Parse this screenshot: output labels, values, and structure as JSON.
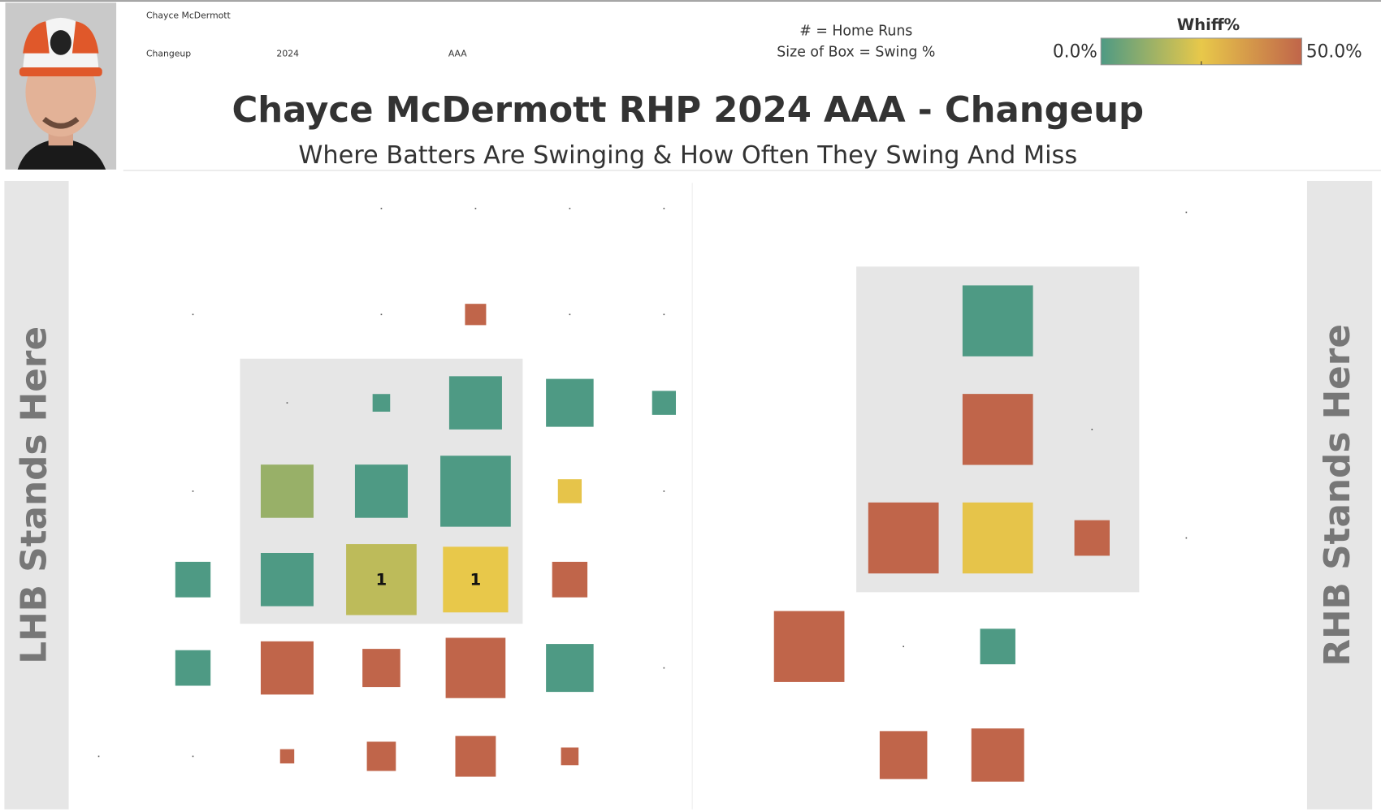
{
  "header": {
    "player": "Chayce McDermott",
    "pitch": "Changeup",
    "season": "2024",
    "level": "AAA",
    "title": "Chayce McDermott RHP 2024 AAA - Changeup",
    "subtitle": "Where Batters Are Swinging & How Often They Swing And Miss",
    "notes": [
      "# = Home Runs",
      "Size of Box = Swing %"
    ]
  },
  "color_scale": {
    "title": "Whiff%",
    "lim": [
      0,
      50
    ],
    "ticks": [
      {
        "value": 0,
        "label": "0.0%"
      },
      {
        "value": 50,
        "label": "50.0%"
      }
    ],
    "stops": [
      {
        "value": 0,
        "color": "#4e9a84"
      },
      {
        "value": 25,
        "color": "#e8c84a"
      },
      {
        "value": 50,
        "color": "#c0654a"
      }
    ]
  },
  "chart_data": [
    {
      "type": "heatmap",
      "label": "LHB Stands Here",
      "xlim": [
        -1.65,
        1.65
      ],
      "ylim": [
        0.7,
        4.25
      ],
      "strike_zone": {
        "x": [
          -0.75,
          0.75
        ],
        "y": [
          1.75,
          3.25
        ]
      },
      "cells": [
        {
          "x": 0,
          "y": 4.1,
          "swing": 0,
          "whiff": 0
        },
        {
          "x": 0.5,
          "y": 4.1,
          "swing": 0,
          "whiff": 0
        },
        {
          "x": 1,
          "y": 4.1,
          "swing": 0,
          "whiff": 0
        },
        {
          "x": 1.5,
          "y": 4.1,
          "swing": 0,
          "whiff": 0
        },
        {
          "x": -1,
          "y": 3.5,
          "swing": 0,
          "whiff": 0
        },
        {
          "x": 0,
          "y": 3.5,
          "swing": 0,
          "whiff": 0
        },
        {
          "x": 0.5,
          "y": 3.5,
          "swing": 7.1,
          "whiff": 50
        },
        {
          "x": 1,
          "y": 3.5,
          "swing": 0,
          "whiff": 0
        },
        {
          "x": 1.5,
          "y": 3.5,
          "swing": 0,
          "whiff": 0
        },
        {
          "x": -0.5,
          "y": 3,
          "swing": 0,
          "whiff": 0
        },
        {
          "x": 0,
          "y": 3,
          "swing": 4.9,
          "whiff": 0
        },
        {
          "x": 0.5,
          "y": 3,
          "swing": 44.4,
          "whiff": 0
        },
        {
          "x": 1,
          "y": 3,
          "swing": 36,
          "whiff": 0
        },
        {
          "x": 1.5,
          "y": 3,
          "swing": 9,
          "whiff": 0
        },
        {
          "x": -1,
          "y": 2.5,
          "swing": 0,
          "whiff": 0
        },
        {
          "x": -0.5,
          "y": 2.5,
          "swing": 44.4,
          "whiff": 12
        },
        {
          "x": 0,
          "y": 2.5,
          "swing": 44.4,
          "whiff": 0
        },
        {
          "x": 0.5,
          "y": 2.5,
          "swing": 79,
          "whiff": 0
        },
        {
          "x": 1,
          "y": 2.5,
          "swing": 9,
          "whiff": 26
        },
        {
          "x": 1.5,
          "y": 2.5,
          "swing": 0,
          "whiff": 0
        },
        {
          "x": -1,
          "y": 2,
          "swing": 19.8,
          "whiff": 0
        },
        {
          "x": -0.5,
          "y": 2,
          "swing": 44.4,
          "whiff": 0
        },
        {
          "x": 0,
          "y": 2,
          "swing": 79,
          "whiff": 18,
          "home_runs": 1
        },
        {
          "x": 0.5,
          "y": 2,
          "swing": 67.6,
          "whiff": 25,
          "home_runs": 1
        },
        {
          "x": 1,
          "y": 2,
          "swing": 19.8,
          "whiff": 50
        },
        {
          "x": -1,
          "y": 1.5,
          "swing": 19.8,
          "whiff": 0
        },
        {
          "x": -0.5,
          "y": 1.5,
          "swing": 44.4,
          "whiff": 50
        },
        {
          "x": 0,
          "y": 1.5,
          "swing": 22.8,
          "whiff": 50
        },
        {
          "x": 0.5,
          "y": 1.5,
          "swing": 57,
          "whiff": 50
        },
        {
          "x": 1,
          "y": 1.5,
          "swing": 36,
          "whiff": 0
        },
        {
          "x": 1.5,
          "y": 1.5,
          "swing": 0,
          "whiff": 0
        },
        {
          "x": -1.5,
          "y": 1,
          "swing": 0,
          "whiff": 0
        },
        {
          "x": -1,
          "y": 1,
          "swing": 0,
          "whiff": 0
        },
        {
          "x": -0.5,
          "y": 1,
          "swing": 3.2,
          "whiff": 50
        },
        {
          "x": 0,
          "y": 1,
          "swing": 13.4,
          "whiff": 50
        },
        {
          "x": 0.5,
          "y": 1,
          "swing": 26.1,
          "whiff": 50
        },
        {
          "x": 1,
          "y": 1,
          "swing": 4.9,
          "whiff": 50
        }
      ]
    },
    {
      "type": "heatmap",
      "label": "RHB Stands Here",
      "xlim": [
        -1.62,
        1.64
      ],
      "ylim": [
        0.75,
        3.64
      ],
      "strike_zone": {
        "x": [
          -0.75,
          0.75
        ],
        "y": [
          1.75,
          3.25
        ]
      },
      "cells": [
        {
          "x": 1,
          "y": 3.5,
          "swing": 0,
          "whiff": 0
        },
        {
          "x": 0,
          "y": 3,
          "swing": 79,
          "whiff": 0
        },
        {
          "x": 0,
          "y": 2.5,
          "swing": 79,
          "whiff": 50
        },
        {
          "x": 0.5,
          "y": 2.5,
          "swing": 0,
          "whiff": 0
        },
        {
          "x": -0.5,
          "y": 2,
          "swing": 79,
          "whiff": 50
        },
        {
          "x": 0,
          "y": 2,
          "swing": 79,
          "whiff": 26
        },
        {
          "x": 0.5,
          "y": 2,
          "swing": 19.8,
          "whiff": 50
        },
        {
          "x": 1,
          "y": 2,
          "swing": 0,
          "whiff": 0
        },
        {
          "x": -1,
          "y": 1.5,
          "swing": 79,
          "whiff": 50
        },
        {
          "x": -0.5,
          "y": 1.5,
          "swing": 0,
          "whiff": 0
        },
        {
          "x": 0,
          "y": 1.5,
          "swing": 19.8,
          "whiff": 0
        },
        {
          "x": -0.5,
          "y": 1,
          "swing": 36,
          "whiff": 50
        },
        {
          "x": 0,
          "y": 1,
          "swing": 44.4,
          "whiff": 50
        }
      ]
    }
  ]
}
